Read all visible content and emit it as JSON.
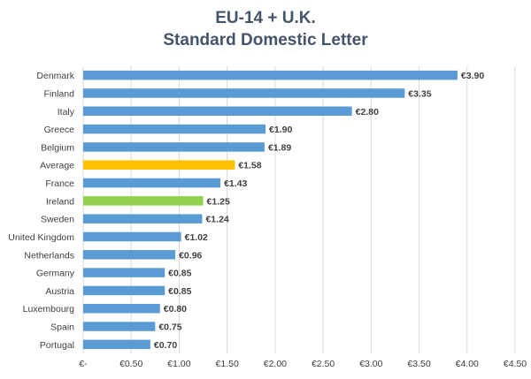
{
  "chart_data": {
    "type": "bar",
    "orientation": "horizontal",
    "title": "EU-14 + U.K.",
    "subtitle": "Standard Domestic Letter",
    "categories": [
      "Denmark",
      "Finland",
      "Italy",
      "Greece",
      "Belgium",
      "Average",
      "France",
      "Ireland",
      "Sweden",
      "United Kingdom",
      "Netherlands",
      "Germany",
      "Austria",
      "Luxembourg",
      "Spain",
      "Portugal"
    ],
    "values": [
      3.9,
      3.35,
      2.8,
      1.9,
      1.89,
      1.58,
      1.43,
      1.25,
      1.24,
      1.02,
      0.96,
      0.85,
      0.85,
      0.8,
      0.75,
      0.7
    ],
    "data_labels": [
      "€3.90",
      "€3.35",
      "€2.80",
      "€1.90",
      "€1.89",
      "€1.58",
      "€1.43",
      "€1.25",
      "€1.24",
      "€1.02",
      "€0.96",
      "€0.85",
      "€0.85",
      "€0.80",
      "€0.75",
      "€0.70"
    ],
    "colors": [
      "#5b9bd5",
      "#5b9bd5",
      "#5b9bd5",
      "#5b9bd5",
      "#5b9bd5",
      "#ffc000",
      "#5b9bd5",
      "#92d050",
      "#5b9bd5",
      "#5b9bd5",
      "#5b9bd5",
      "#5b9bd5",
      "#5b9bd5",
      "#5b9bd5",
      "#5b9bd5",
      "#5b9bd5"
    ],
    "xlim": [
      0,
      4.5
    ],
    "x_ticks": [
      0,
      0.5,
      1.0,
      1.5,
      2.0,
      2.5,
      3.0,
      3.5,
      4.0,
      4.5
    ],
    "x_tick_labels": [
      "€-",
      "€0.50",
      "€1.00",
      "€1.50",
      "€2.00",
      "€2.50",
      "€3.00",
      "€3.50",
      "€4.00",
      "€4.50"
    ],
    "grid": true,
    "legend": "none"
  }
}
